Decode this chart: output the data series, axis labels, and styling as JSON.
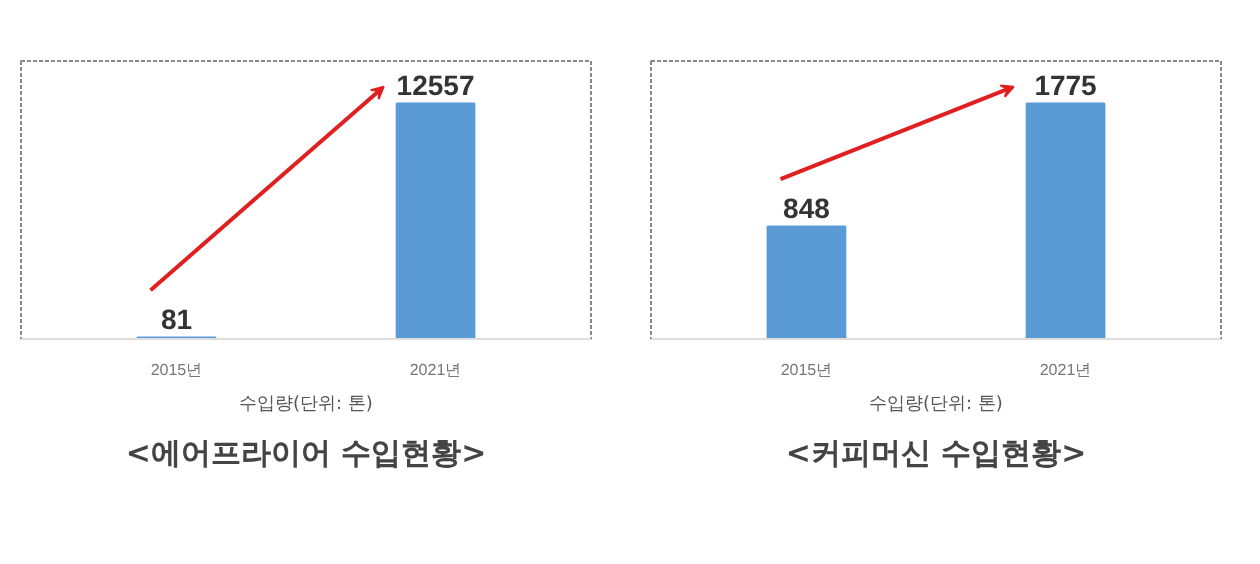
{
  "chart_data": [
    {
      "type": "bar",
      "title": "<에어프라이어 수입현황>",
      "xlabel": "수입량(단위: 톤)",
      "categories": [
        "2015년",
        "2021년"
      ],
      "values": [
        81,
        12557
      ],
      "color": "#5b9bd5",
      "data_labels": true,
      "grid": false
    },
    {
      "type": "bar",
      "title": "<커피머신 수입현황>",
      "xlabel": "수입량(단위: 톤)",
      "categories": [
        "2015년",
        "2021년"
      ],
      "values": [
        848,
        1775
      ],
      "color": "#5b9bd5",
      "data_labels": true,
      "grid": false
    }
  ]
}
